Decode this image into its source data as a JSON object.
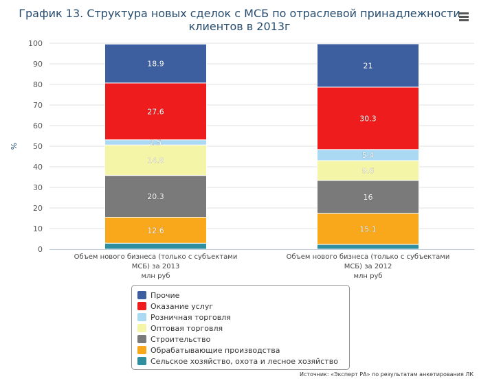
{
  "header": {
    "title_line1": "График 13. Структура новых сделок с МСБ по отраслевой принадлежности",
    "title_line2": "клиентов в 2013г"
  },
  "source": "Источник: «Эксперт РА» по результатам анкетирования ЛК",
  "chart_data": {
    "type": "bar",
    "stacked": true,
    "title": "График 13. Структура новых сделок с МСБ по отраслевой принадлежности клиентов в 2013г",
    "ylabel": "%",
    "ylim": [
      0,
      100
    ],
    "yticks": [
      0,
      10,
      20,
      30,
      40,
      50,
      60,
      70,
      80,
      90,
      100
    ],
    "grid": true,
    "legend_position": "bottom-center",
    "categories": [
      [
        "Объем нового бизнеса (только с субъектами",
        "МСБ) за 2013",
        "млн руб"
      ],
      [
        "Объем нового бизнеса (только с субъектами",
        "МСБ) за 2012",
        "млн руб"
      ]
    ],
    "series": [
      {
        "name": "Сельское хозяйство, охота и лесное хозяйство",
        "color": "#2f8ea0",
        "values": [
          2.9,
          2.3
        ],
        "labels": [
          "",
          ""
        ]
      },
      {
        "name": "Обрабатывающие производства",
        "color": "#f9a81b",
        "values": [
          12.6,
          15.1
        ],
        "labels": [
          "12.6",
          "15.1"
        ]
      },
      {
        "name": "Строительство",
        "color": "#7a7a7a",
        "values": [
          20.3,
          16
        ],
        "labels": [
          "20.3",
          "16"
        ]
      },
      {
        "name": "Оптовая торговля",
        "color": "#f5f5a8",
        "values": [
          14.8,
          9.6
        ],
        "labels": [
          "14.8",
          "9.6"
        ]
      },
      {
        "name": "Розничная торговля",
        "color": "#aad9f3",
        "values": [
          2.5,
          5.4
        ],
        "labels": [
          "2.5",
          "5.4"
        ]
      },
      {
        "name": "Оказание услуг",
        "color": "#ee1c1c",
        "values": [
          27.6,
          30.3
        ],
        "labels": [
          "27.6",
          "30.3"
        ]
      },
      {
        "name": "Прочие",
        "color": "#3d5fa0",
        "values": [
          18.9,
          21
        ],
        "labels": [
          "18.9",
          "21"
        ]
      }
    ]
  }
}
